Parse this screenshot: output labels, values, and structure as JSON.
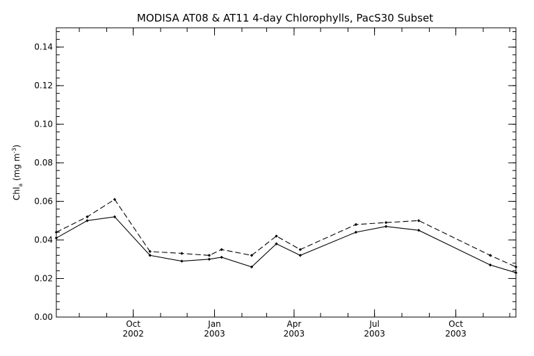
{
  "chart_data": {
    "type": "line",
    "title": "MODISA AT08 & AT11 4-day Chlorophylls, PacS30 Subset",
    "ylabel": "Chl",
    "ylabel_sub": "a",
    "ylabel_units": "(mg m",
    "ylabel_sup": "-3",
    "ylabel_close": ")",
    "xlabel": "",
    "xlim": [
      "2002-07-06",
      "2003-12-08"
    ],
    "ylim": [
      0,
      0.15
    ],
    "y_ticks": [
      0.0,
      0.02,
      0.04,
      0.06,
      0.08,
      0.1,
      0.12,
      0.14
    ],
    "y_tick_labels": [
      "0.00",
      "0.02",
      "0.04",
      "0.06",
      "0.08",
      "0.10",
      "0.12",
      "0.14"
    ],
    "x_ticks": [
      {
        "date": "2002-10-01",
        "month": "Oct",
        "year": "2002"
      },
      {
        "date": "2003-01-01",
        "month": "Jan",
        "year": "2003"
      },
      {
        "date": "2003-04-01",
        "month": "Apr",
        "year": "2003"
      },
      {
        "date": "2003-07-01",
        "month": "Jul",
        "year": "2003"
      },
      {
        "date": "2003-10-01",
        "month": "Oct",
        "year": "2003"
      }
    ],
    "series": [
      {
        "style": "solid",
        "x": [
          "2002-07-06",
          "2002-08-10",
          "2002-09-10",
          "2002-10-20",
          "2002-11-25",
          "2002-12-26",
          "2003-01-09",
          "2003-02-12",
          "2003-03-12",
          "2003-04-08",
          "2003-06-10",
          "2003-07-14",
          "2003-08-20",
          "2003-11-09",
          "2003-12-08"
        ],
        "y": [
          0.041,
          0.05,
          0.052,
          0.032,
          0.029,
          0.03,
          0.031,
          0.026,
          0.038,
          0.032,
          0.044,
          0.047,
          0.045,
          0.027,
          0.023
        ]
      },
      {
        "style": "dashed",
        "x": [
          "2002-07-06",
          "2002-08-10",
          "2002-09-10",
          "2002-10-20",
          "2002-11-25",
          "2002-12-26",
          "2003-01-09",
          "2003-02-12",
          "2003-03-12",
          "2003-04-08",
          "2003-06-10",
          "2003-07-14",
          "2003-08-20",
          "2003-11-09",
          "2003-12-08"
        ],
        "y": [
          0.044,
          0.052,
          0.061,
          0.034,
          0.033,
          0.032,
          0.035,
          0.032,
          0.042,
          0.035,
          0.048,
          0.049,
          0.05,
          0.032,
          0.026
        ]
      }
    ],
    "grid": false,
    "legend": "none"
  }
}
